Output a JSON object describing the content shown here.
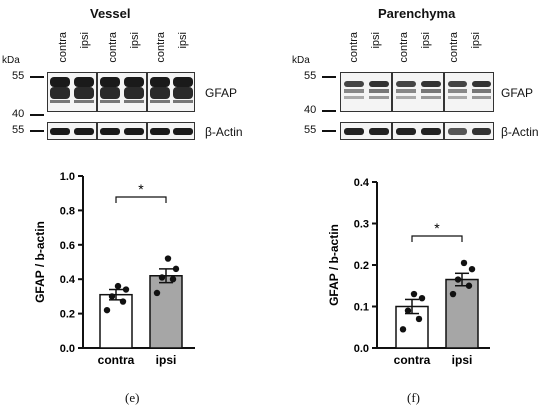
{
  "left": {
    "title": "Vessel",
    "kda_label": "kDa",
    "mw_markers": [
      "55",
      "40",
      "55"
    ],
    "lanes": [
      "contra",
      "ipsi",
      "contra",
      "ipsi",
      "contra",
      "ipsi"
    ],
    "protein_top": "GFAP",
    "protein_bottom": "β-Actin",
    "panel_letter": "(e)"
  },
  "right": {
    "title": "Parenchyma",
    "kda_label": "kDa",
    "mw_markers": [
      "55",
      "40",
      "55"
    ],
    "lanes": [
      "contra",
      "ipsi",
      "contra",
      "ipsi",
      "contra",
      "ipsi"
    ],
    "protein_top": "GFAP",
    "protein_bottom": "β-Actin",
    "panel_letter": "(f)"
  },
  "chart_data": [
    {
      "type": "bar",
      "categories": [
        "contra",
        "ipsi"
      ],
      "values": [
        0.31,
        0.42
      ],
      "errors": [
        0.03,
        0.04
      ],
      "points": [
        [
          0.22,
          0.27,
          0.3,
          0.34,
          0.36
        ],
        [
          0.32,
          0.4,
          0.41,
          0.46,
          0.52
        ]
      ],
      "bar_colors": [
        "#ffffff",
        "#a6a6a6"
      ],
      "ylabel": "GFAP / b-actin",
      "ylim": [
        0.0,
        1.0
      ],
      "yticks": [
        "0.0",
        "0.2",
        "0.4",
        "0.6",
        "0.8",
        "1.0"
      ],
      "significance": "*"
    },
    {
      "type": "bar",
      "categories": [
        "contra",
        "ipsi"
      ],
      "values": [
        0.1,
        0.165
      ],
      "errors": [
        0.017,
        0.015
      ],
      "points": [
        [
          0.045,
          0.07,
          0.09,
          0.12,
          0.13
        ],
        [
          0.13,
          0.15,
          0.165,
          0.19,
          0.205
        ]
      ],
      "bar_colors": [
        "#ffffff",
        "#a6a6a6"
      ],
      "ylabel": "GFAP / b-actin",
      "ylim": [
        0.0,
        0.4
      ],
      "yticks": [
        "0.0",
        "0.1",
        "0.2",
        "0.3",
        "0.4"
      ],
      "significance": "*"
    }
  ]
}
